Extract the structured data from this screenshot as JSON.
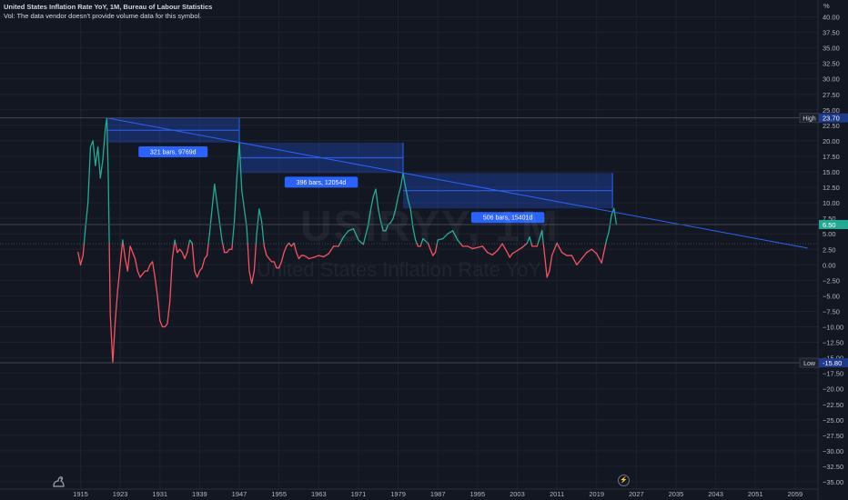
{
  "header": {
    "title": "United States Inflation Rate YoY, 1M, Bureau of Labour Statistics",
    "vol_note": "Vol: The data vendor doesn't provide volume data for this symbol."
  },
  "watermark": {
    "symbol": "USIRYY, 1M",
    "name": "United States Inflation Rate YoY"
  },
  "price_axis": {
    "unit_label": "%"
  },
  "markers": {
    "high": {
      "label": "High",
      "value": "23.70"
    },
    "low": {
      "label": "Low",
      "value": "-15.80"
    },
    "last": {
      "value": "6.50"
    }
  },
  "colors": {
    "background": "#131722",
    "up": "#22ab94",
    "down": "#f7525f",
    "trend": "#2962ff",
    "label_bg": "#2962ff"
  },
  "chart_data": {
    "type": "line",
    "x_ticks": [
      "1915",
      "1923",
      "1931",
      "1939",
      "1947",
      "1955",
      "1963",
      "1971",
      "1979",
      "1987",
      "1995",
      "2003",
      "2011",
      "2019",
      "2027",
      "2035",
      "2043",
      "2051",
      "2059"
    ],
    "y_ticks": [
      40,
      37.5,
      35,
      32.5,
      30,
      27.5,
      25,
      22.5,
      20,
      17.5,
      15,
      12.5,
      10,
      7.5,
      5,
      2.5,
      0,
      -2.5,
      -5,
      -7.5,
      -10,
      -12.5,
      -15,
      -17.5,
      -20,
      -22.5,
      -25,
      -27.5,
      -30,
      -32.5,
      -35
    ],
    "ylim": [
      -35.8,
      40.8
    ],
    "xlim": [
      1915,
      2061.5
    ],
    "baseline": 3.4,
    "series": [
      {
        "values": [
          [
            1914.5,
            2
          ],
          [
            1915,
            0
          ],
          [
            1915.5,
            1.5
          ],
          [
            1916,
            6
          ],
          [
            1916.5,
            10
          ],
          [
            1917,
            19
          ],
          [
            1917.5,
            20
          ],
          [
            1918,
            16
          ],
          [
            1918.5,
            19
          ],
          [
            1919,
            14
          ],
          [
            1919.5,
            17
          ],
          [
            1920,
            22
          ],
          [
            1920.3,
            23.7
          ],
          [
            1920.6,
            14
          ],
          [
            1921,
            -8
          ],
          [
            1921.5,
            -15.8
          ],
          [
            1922,
            -9
          ],
          [
            1922.5,
            -4
          ],
          [
            1923,
            0
          ],
          [
            1923.5,
            4
          ],
          [
            1924,
            1
          ],
          [
            1924.5,
            -1
          ],
          [
            1925,
            3
          ],
          [
            1925.5,
            2
          ],
          [
            1926,
            1
          ],
          [
            1926.5,
            -1
          ],
          [
            1927,
            -2
          ],
          [
            1927.5,
            -1.5
          ],
          [
            1928,
            -1
          ],
          [
            1928.5,
            -1
          ],
          [
            1929,
            0
          ],
          [
            1929.5,
            0.5
          ],
          [
            1930,
            -2
          ],
          [
            1930.5,
            -5
          ],
          [
            1931,
            -9
          ],
          [
            1931.5,
            -10
          ],
          [
            1932,
            -10
          ],
          [
            1932.5,
            -9.5
          ],
          [
            1933,
            -6
          ],
          [
            1933.5,
            1
          ],
          [
            1934,
            4
          ],
          [
            1934.5,
            2
          ],
          [
            1935,
            2.5
          ],
          [
            1935.5,
            2
          ],
          [
            1936,
            1
          ],
          [
            1936.5,
            2
          ],
          [
            1937,
            4
          ],
          [
            1937.5,
            3.5
          ],
          [
            1938,
            -1
          ],
          [
            1938.5,
            -2
          ],
          [
            1939,
            -1
          ],
          [
            1939.5,
            -0.5
          ],
          [
            1940,
            1
          ],
          [
            1940.5,
            1.5
          ],
          [
            1941,
            5
          ],
          [
            1941.5,
            9
          ],
          [
            1942,
            13
          ],
          [
            1942.5,
            10
          ],
          [
            1943,
            7
          ],
          [
            1943.5,
            4
          ],
          [
            1944,
            2
          ],
          [
            1944.5,
            2
          ],
          [
            1945,
            2.5
          ],
          [
            1945.5,
            2.5
          ],
          [
            1946,
            7
          ],
          [
            1946.5,
            14
          ],
          [
            1947,
            19.7
          ],
          [
            1947.5,
            12
          ],
          [
            1948,
            9
          ],
          [
            1948.5,
            6
          ],
          [
            1949,
            -1
          ],
          [
            1949.5,
            -3
          ],
          [
            1950,
            -1
          ],
          [
            1950.5,
            5
          ],
          [
            1951,
            9
          ],
          [
            1951.5,
            7
          ],
          [
            1952,
            3
          ],
          [
            1952.5,
            1.5
          ],
          [
            1953,
            1
          ],
          [
            1953.5,
            0.5
          ],
          [
            1954,
            0.5
          ],
          [
            1954.5,
            -0.5
          ],
          [
            1955,
            -0.5
          ],
          [
            1955.5,
            0.5
          ],
          [
            1956,
            2
          ],
          [
            1956.5,
            3
          ],
          [
            1957,
            3.5
          ],
          [
            1957.5,
            3
          ],
          [
            1958,
            3.5
          ],
          [
            1958.5,
            2
          ],
          [
            1959,
            1
          ],
          [
            1959.5,
            1.5
          ],
          [
            1960,
            1.5
          ],
          [
            1960.5,
            1.3
          ],
          [
            1961,
            1
          ],
          [
            1962,
            1.2
          ],
          [
            1963,
            1.5
          ],
          [
            1964,
            1.3
          ],
          [
            1965,
            1.8
          ],
          [
            1966,
            3
          ],
          [
            1967,
            3
          ],
          [
            1968,
            4.5
          ],
          [
            1969,
            5.5
          ],
          [
            1970,
            5.8
          ],
          [
            1971,
            4
          ],
          [
            1972,
            3.3
          ],
          [
            1973,
            6.5
          ],
          [
            1973.5,
            9
          ],
          [
            1974,
            11
          ],
          [
            1974.5,
            12.2
          ],
          [
            1975,
            9
          ],
          [
            1975.5,
            7
          ],
          [
            1976,
            5.5
          ],
          [
            1976.5,
            5.5
          ],
          [
            1977,
            6.5
          ],
          [
            1977.5,
            6.8
          ],
          [
            1978,
            7.5
          ],
          [
            1978.5,
            9
          ],
          [
            1979,
            11
          ],
          [
            1979.5,
            12.5
          ],
          [
            1980,
            14.8
          ],
          [
            1980.5,
            12.5
          ],
          [
            1981,
            10.5
          ],
          [
            1981.5,
            9
          ],
          [
            1982,
            6
          ],
          [
            1982.5,
            4
          ],
          [
            1983,
            3
          ],
          [
            1983.5,
            3
          ],
          [
            1984,
            4.2
          ],
          [
            1985,
            3.5
          ],
          [
            1986,
            1.5
          ],
          [
            1986.5,
            2
          ],
          [
            1987,
            4
          ],
          [
            1988,
            4.2
          ],
          [
            1989,
            5
          ],
          [
            1990,
            5.5
          ],
          [
            1991,
            4
          ],
          [
            1992,
            3
          ],
          [
            1993,
            3
          ],
          [
            1994,
            2.6
          ],
          [
            1995,
            2.8
          ],
          [
            1996,
            3
          ],
          [
            1997,
            2
          ],
          [
            1998,
            1.6
          ],
          [
            1999,
            2.3
          ],
          [
            2000,
            3.4
          ],
          [
            2001,
            2
          ],
          [
            2001.5,
            1.2
          ],
          [
            2002,
            1.8
          ],
          [
            2003,
            2.3
          ],
          [
            2004,
            2.8
          ],
          [
            2005,
            3.5
          ],
          [
            2005.5,
            4.5
          ],
          [
            2006,
            3
          ],
          [
            2007,
            3
          ],
          [
            2008,
            5.5
          ],
          [
            2009,
            -2
          ],
          [
            2009.5,
            -1
          ],
          [
            2010,
            1.5
          ],
          [
            2011,
            3.5
          ],
          [
            2012,
            2
          ],
          [
            2013,
            1.5
          ],
          [
            2014,
            1.5
          ],
          [
            2015,
            0
          ],
          [
            2016,
            1
          ],
          [
            2017,
            2
          ],
          [
            2018,
            2.5
          ],
          [
            2019,
            1.8
          ],
          [
            2020,
            0.3
          ],
          [
            2021,
            4
          ],
          [
            2021.5,
            5.4
          ],
          [
            2022,
            8
          ],
          [
            2022.5,
            9.1
          ],
          [
            2023,
            6.5
          ]
        ]
      }
    ],
    "annotations": [
      {
        "text": "321 bars, 9769d",
        "x1": 1920.3,
        "y1": 23.7,
        "x2": 1947,
        "y2": 19.7
      },
      {
        "text": "396 bars, 12054d",
        "x1": 1947,
        "y1": 19.7,
        "x2": 1980,
        "y2": 14.8
      },
      {
        "text": "506 bars, 15401d",
        "x1": 1980,
        "y1": 14.8,
        "x2": 2022.2,
        "y2": 9.1
      }
    ],
    "trendline": {
      "x1": 1920.3,
      "y1": 23.7,
      "x2": 2061.5,
      "y2": 2.7
    }
  }
}
